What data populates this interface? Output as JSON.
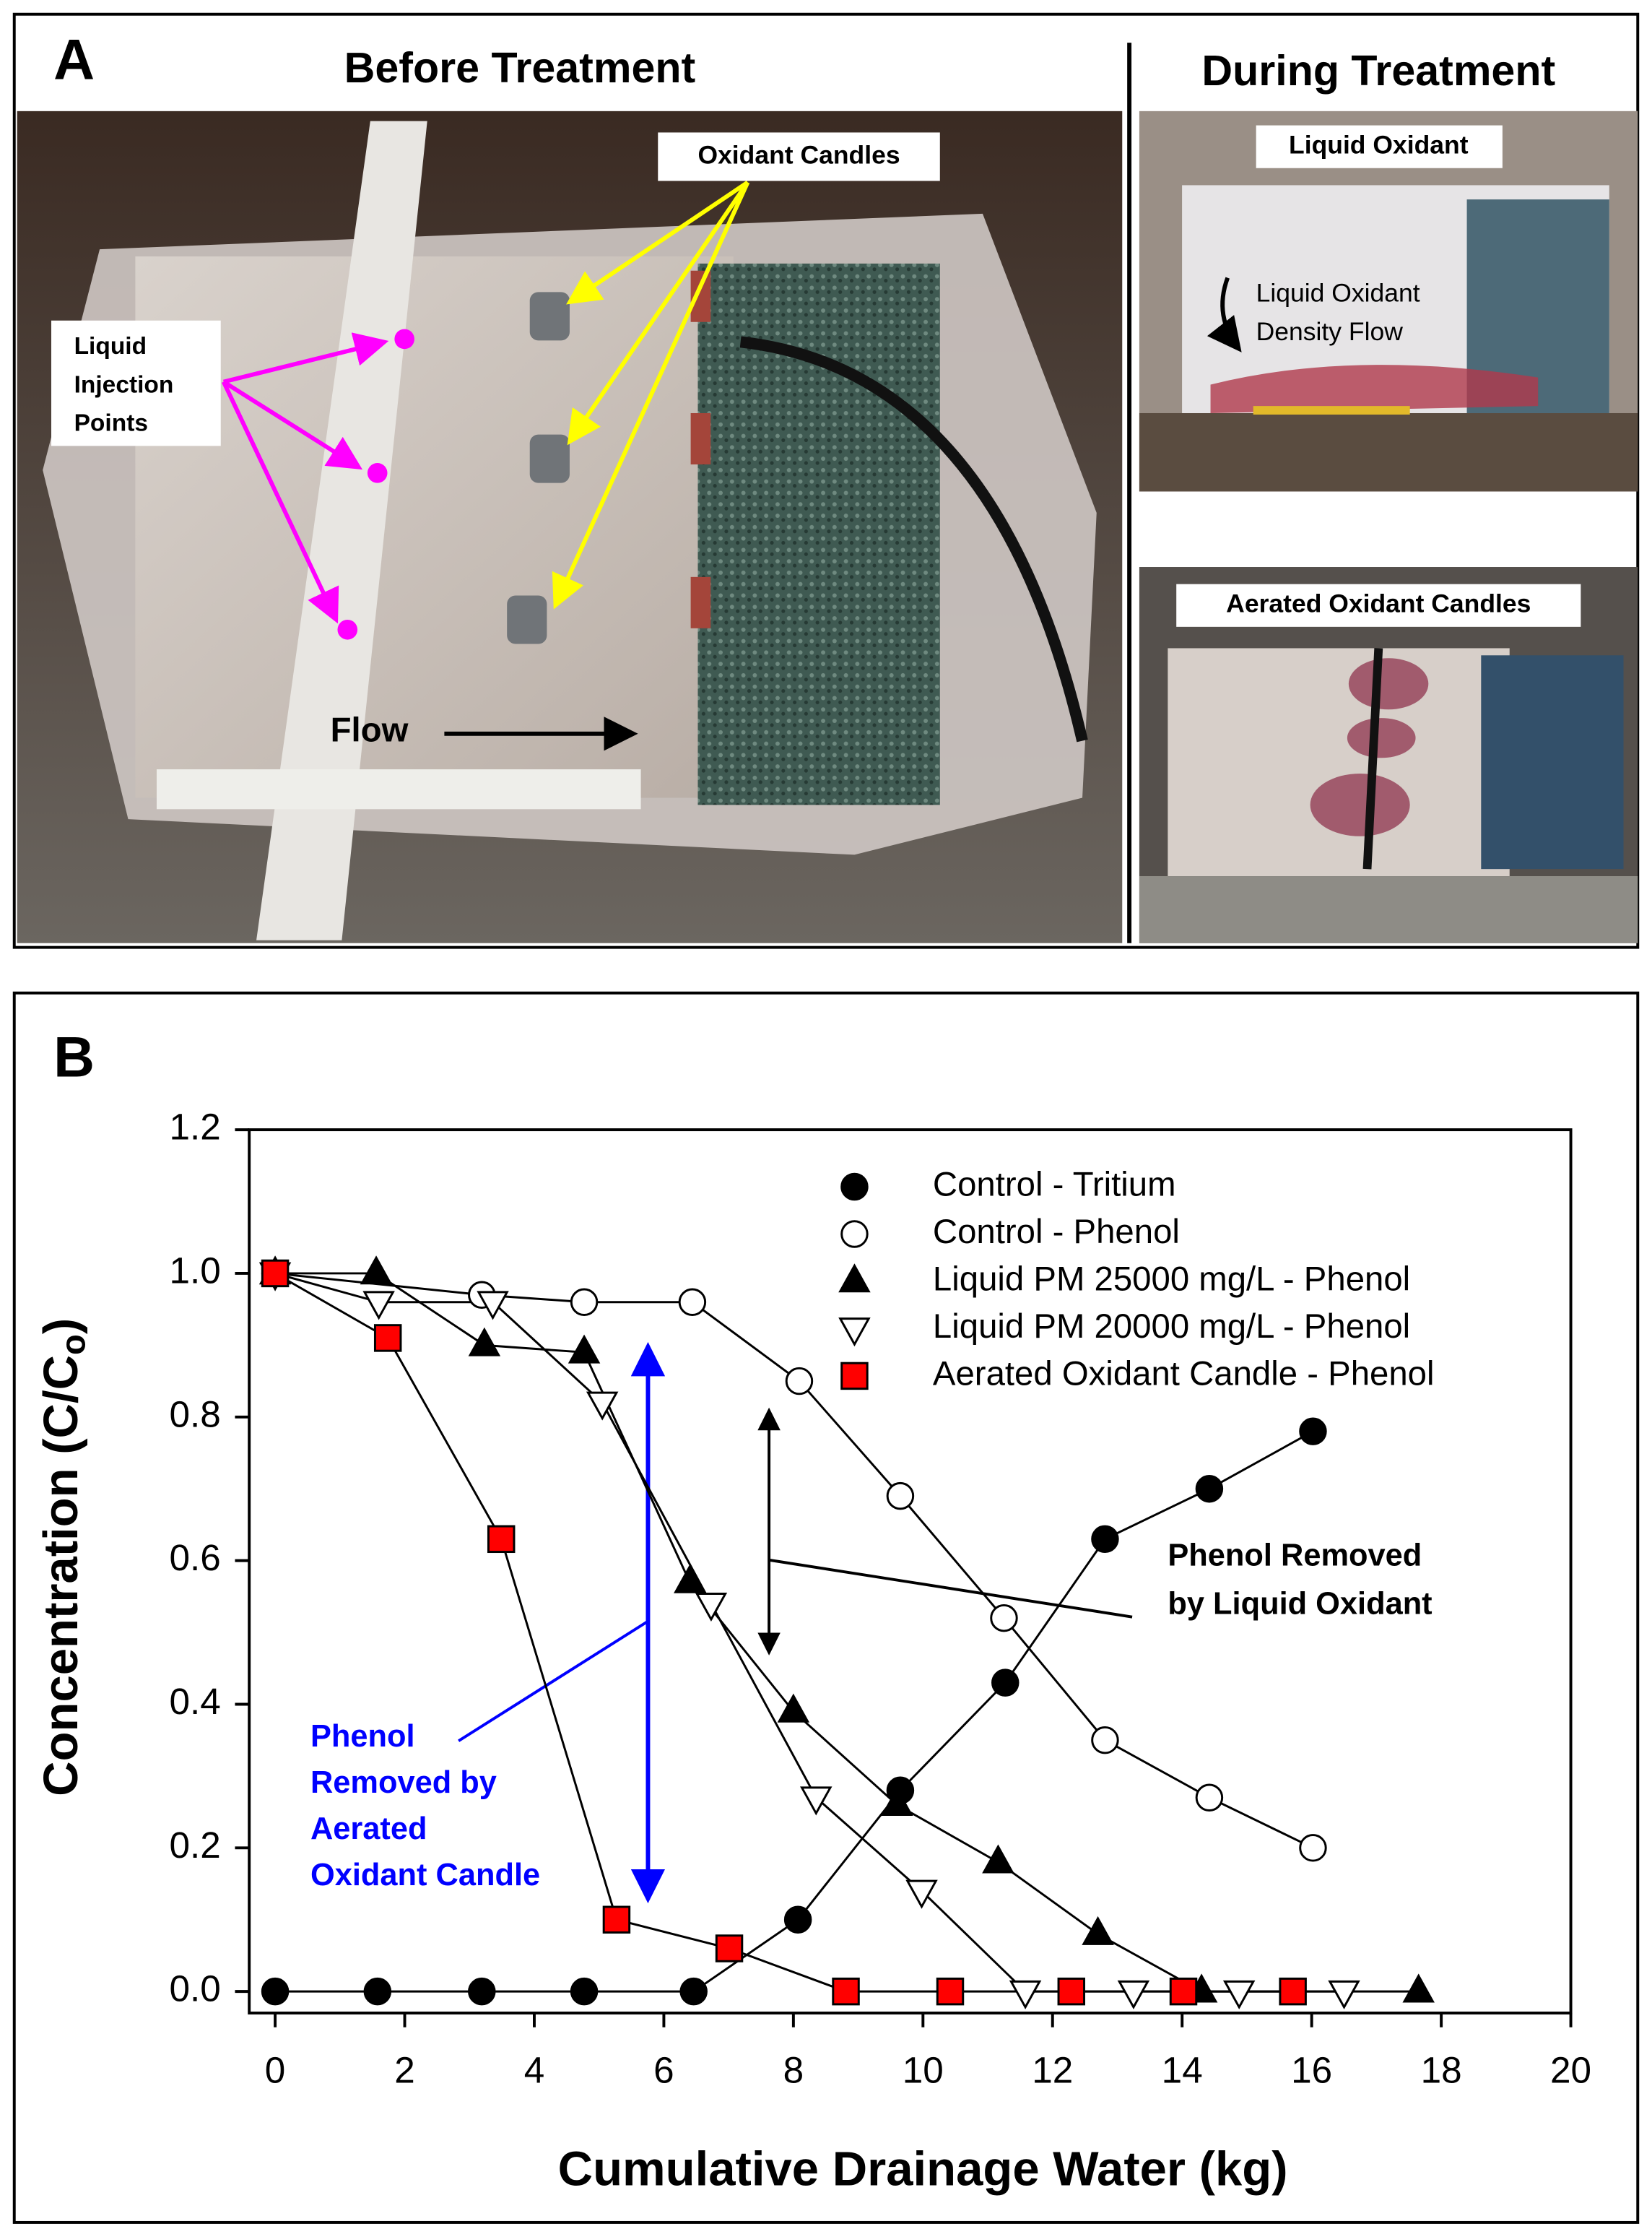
{
  "panel_a": {
    "label": "A",
    "before_title": "Before Treatment",
    "during_title": "During Treatment",
    "oxidant_candles": "Oxidant Candles",
    "liquid_injection_points": [
      "Liquid",
      "Injection",
      "Points"
    ],
    "flow": "Flow",
    "liquid_oxidant": "Liquid Oxidant",
    "density_flow": [
      "Liquid Oxidant",
      "Density Flow"
    ],
    "aerated_oxidant_candles": "Aerated Oxidant Candles"
  },
  "chart_data": {
    "type": "line",
    "panel_label": "B",
    "x_label": "Cumulative Drainage Water (kg)",
    "y_label": [
      "Concentration (C/C",
      "o",
      ")"
    ],
    "xlim": [
      -0.4,
      20
    ],
    "ylim": [
      -0.03,
      1.2
    ],
    "xticks": [
      0,
      2,
      4,
      6,
      8,
      10,
      12,
      14,
      16,
      18,
      20
    ],
    "yticks": [
      {
        "value": 0,
        "label": "0.0"
      },
      0.2,
      0.4,
      0.6,
      0.8,
      {
        "value": 1,
        "label": "1.0"
      },
      1.2
    ],
    "legend": "upper right",
    "series": [
      {
        "name": "Control - Tritium",
        "marker": "circle",
        "color": "#000000",
        "x": [
          0,
          1.58,
          3.19,
          4.77,
          6.46,
          8.07,
          9.65,
          11.27,
          12.81,
          14.42,
          16.02
        ],
        "values": [
          0,
          0,
          0,
          0,
          0,
          0.1,
          0.28,
          0.43,
          0.63,
          0.7,
          0.78
        ]
      },
      {
        "name": "Control - Phenol",
        "marker": "circle",
        "color": "#ffffff",
        "x": [
          0,
          3.19,
          4.77,
          6.44,
          8.09,
          9.65,
          11.25,
          12.81,
          14.42,
          16.02
        ],
        "values": [
          1,
          0.97,
          0.96,
          0.96,
          0.85,
          0.69,
          0.52,
          0.35,
          0.27,
          0.2
        ]
      },
      {
        "name": "Liquid PM 25000 mg/L - Phenol",
        "marker": "triangle-up",
        "color": "#000000",
        "x": [
          0,
          1.56,
          3.23,
          4.77,
          6.4,
          8.0,
          9.6,
          11.16,
          12.7,
          14.3,
          17.65
        ],
        "values": [
          1,
          1,
          0.9,
          0.89,
          0.57,
          0.39,
          0.26,
          0.18,
          0.08,
          0,
          0
        ]
      },
      {
        "name": "Liquid PM 20000 mg/L - Phenol",
        "marker": "triangle-down",
        "color": "#ffffff",
        "x": [
          0,
          1.6,
          3.36,
          5.05,
          6.73,
          8.35,
          9.98,
          11.58,
          13.25,
          14.88,
          16.5
        ],
        "values": [
          1,
          0.96,
          0.96,
          0.82,
          0.54,
          0.27,
          0.14,
          0,
          0,
          0,
          0
        ]
      },
      {
        "name": "Aerated Oxidant Candle - Phenol",
        "marker": "square",
        "color": "#ff0000",
        "x": [
          0,
          1.74,
          3.49,
          5.27,
          7.01,
          8.81,
          10.42,
          12.29,
          14.02,
          15.71
        ],
        "values": [
          1,
          0.91,
          0.63,
          0.1,
          0.06,
          0,
          0,
          0,
          0,
          0
        ]
      }
    ],
    "annotations": [
      {
        "lines": [
          "Phenol Removed",
          "by Liquid Oxidant"
        ],
        "color": "#000000"
      },
      {
        "lines": [
          "Phenol",
          "Removed by",
          "Aerated",
          "Oxidant Candle"
        ],
        "color": "#0000ff"
      }
    ]
  }
}
